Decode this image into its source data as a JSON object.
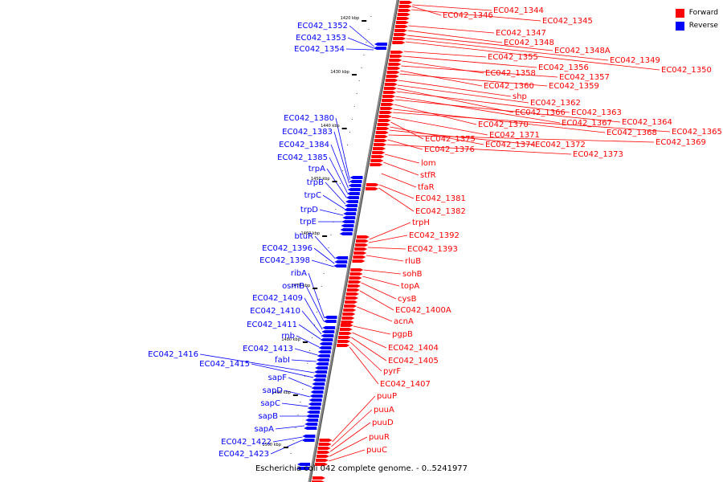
{
  "legend": {
    "forward_label": "Forward",
    "reverse_label": "Reverse",
    "forward_color": "#ff0000",
    "reverse_color": "#0000ff"
  },
  "caption": "Escherichia coli 042 complete genome. - 0..5241977",
  "ticks": [
    "1420 kbp",
    "1430 kbp",
    "1440 kbp",
    "1450 kbp",
    "1460 kbp",
    "1470 kbp",
    "1480 kbp",
    "1490 kbp",
    "1500 kbp"
  ],
  "forward_genes": [
    "EC042_1344",
    "EC042_1346",
    "EC042_1345",
    "EC042_1347",
    "EC042_1348",
    "EC042_1348A",
    "EC042_1349",
    "EC042_1350",
    "EC042_1355",
    "EC042_1356",
    "EC042_1358",
    "EC042_1357",
    "EC042_1360",
    "EC042_1359",
    "shp",
    "EC042_1362",
    "EC042_1366",
    "EC042_1363",
    "EC042_1367",
    "EC042_1364",
    "EC042_1370",
    "EC042_1368",
    "EC042_1365",
    "EC042_1371",
    "EC042_1375",
    "EC042_1374",
    "EC042_1372",
    "EC042_1369",
    "EC042_1376",
    "EC042_1373",
    "lom",
    "stfR",
    "tfaR",
    "EC042_1381",
    "EC042_1382",
    "trpH",
    "EC042_1392",
    "EC042_1393",
    "rluB",
    "sohB",
    "topA",
    "cysB",
    "EC042_1400A",
    "acnA",
    "pgpB",
    "EC042_1404",
    "EC042_1405",
    "pyrF",
    "EC042_1407",
    "puuP",
    "puuA",
    "puuD",
    "puuR",
    "puuC"
  ],
  "reverse_genes": [
    "EC042_1352",
    "EC042_1353",
    "EC042_1354",
    "EC042_1380",
    "EC042_1383",
    "EC042_1384",
    "EC042_1385",
    "trpA",
    "trpB",
    "trpC",
    "trpD",
    "trpE",
    "btuR",
    "EC042_1396",
    "EC042_1398",
    "ribA",
    "osmB",
    "EC042_1409",
    "EC042_1410",
    "EC042_1411",
    "rnb",
    "EC042_1413",
    "fabI",
    "EC042_1416",
    "EC042_1415",
    "sapF",
    "sapD",
    "sapC",
    "sapB",
    "sapA",
    "EC042_1422",
    "EC042_1423"
  ]
}
